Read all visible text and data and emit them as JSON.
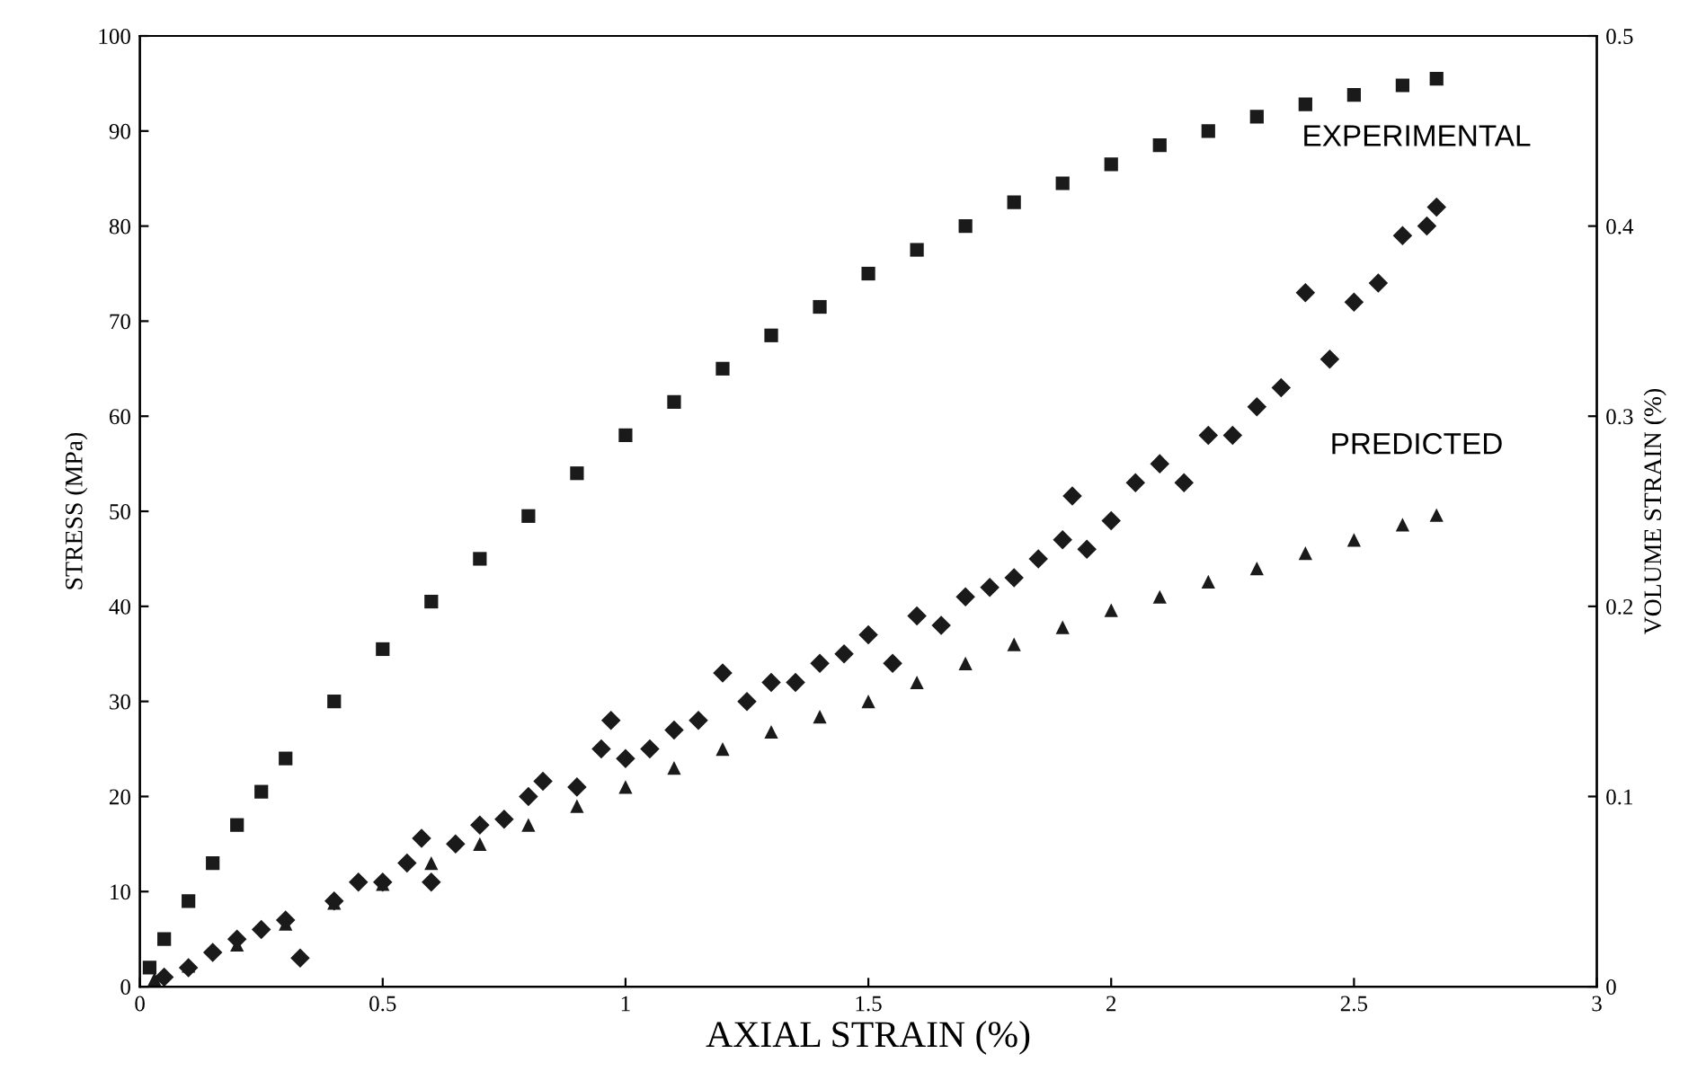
{
  "chart_data": {
    "type": "scatter",
    "xlabel": "AXIAL STRAIN (%)",
    "ylabel": "STRESS (MPa)",
    "y2label": "VOLUME STRAIN (%)",
    "xlim": [
      0,
      3
    ],
    "xticks": [
      0,
      0.5,
      1,
      1.5,
      2,
      2.5,
      3
    ],
    "ylim": [
      0,
      100
    ],
    "yticks": [
      0,
      10,
      20,
      30,
      40,
      50,
      60,
      70,
      80,
      90,
      100
    ],
    "y2lim": [
      0,
      0.5
    ],
    "y2ticks": [
      0,
      0.1,
      0.2,
      0.3,
      0.4,
      0.5
    ],
    "legend": false,
    "grid": false,
    "series": [
      {
        "color": "#1a1a1a",
        "marker": "square",
        "x": [
          0.02,
          0.05,
          0.1,
          0.15,
          0.2,
          0.25,
          0.3,
          0.4,
          0.5,
          0.6,
          0.7,
          0.8,
          0.9,
          1.0,
          1.1,
          1.2,
          1.3,
          1.4,
          1.5,
          1.6,
          1.7,
          1.8,
          1.9,
          2.0,
          2.1,
          2.2,
          2.3,
          2.4,
          2.5,
          2.6,
          2.67
        ],
        "values": [
          2,
          5,
          9,
          13,
          17,
          20.5,
          24,
          30,
          35.5,
          40.5,
          45,
          49.5,
          54,
          58,
          61.5,
          65,
          68.5,
          71.5,
          75,
          77.5,
          80,
          82.5,
          84.5,
          86.5,
          88.5,
          90,
          91.5,
          92.8,
          93.8,
          94.8,
          95.5
        ]
      },
      {
        "name": "EXPERIMENTAL",
        "axis": "y2",
        "color": "#1a1a1a",
        "marker": "diamond",
        "x": [
          0.05,
          0.1,
          0.15,
          0.2,
          0.25,
          0.3,
          0.33,
          0.4,
          0.45,
          0.5,
          0.55,
          0.58,
          0.6,
          0.65,
          0.7,
          0.75,
          0.8,
          0.83,
          0.9,
          0.95,
          0.97,
          1.0,
          1.05,
          1.1,
          1.15,
          1.2,
          1.25,
          1.3,
          1.35,
          1.4,
          1.45,
          1.5,
          1.55,
          1.6,
          1.65,
          1.7,
          1.75,
          1.8,
          1.85,
          1.9,
          1.92,
          1.95,
          2.0,
          2.05,
          2.1,
          2.15,
          2.2,
          2.25,
          2.3,
          2.35,
          2.4,
          2.45,
          2.5,
          2.55,
          2.6,
          2.65,
          2.67
        ],
        "values": [
          0.005,
          0.01,
          0.018,
          0.025,
          0.03,
          0.035,
          0.015,
          0.045,
          0.055,
          0.055,
          0.065,
          0.078,
          0.055,
          0.075,
          0.085,
          0.088,
          0.1,
          0.108,
          0.105,
          0.125,
          0.14,
          0.12,
          0.125,
          0.135,
          0.14,
          0.165,
          0.15,
          0.16,
          0.16,
          0.17,
          0.175,
          0.185,
          0.17,
          0.195,
          0.19,
          0.205,
          0.21,
          0.215,
          0.225,
          0.235,
          0.258,
          0.23,
          0.245,
          0.265,
          0.275,
          0.265,
          0.29,
          0.29,
          0.305,
          0.315,
          0.365,
          0.33,
          0.36,
          0.37,
          0.395,
          0.4,
          0.41
        ]
      },
      {
        "name": "PREDICTED",
        "axis": "y2",
        "color": "#1a1a1a",
        "marker": "triangle",
        "x": [
          0.03,
          0.1,
          0.2,
          0.3,
          0.4,
          0.5,
          0.6,
          0.7,
          0.8,
          0.9,
          1.0,
          1.1,
          1.2,
          1.3,
          1.4,
          1.5,
          1.6,
          1.7,
          1.8,
          1.9,
          2.0,
          2.1,
          2.2,
          2.3,
          2.4,
          2.5,
          2.6,
          2.67
        ],
        "values": [
          0.004,
          0.011,
          0.022,
          0.033,
          0.044,
          0.054,
          0.065,
          0.075,
          0.085,
          0.095,
          0.105,
          0.115,
          0.125,
          0.134,
          0.142,
          0.15,
          0.16,
          0.17,
          0.18,
          0.189,
          0.198,
          0.205,
          0.213,
          0.22,
          0.228,
          0.235,
          0.243,
          0.248
        ]
      }
    ]
  }
}
